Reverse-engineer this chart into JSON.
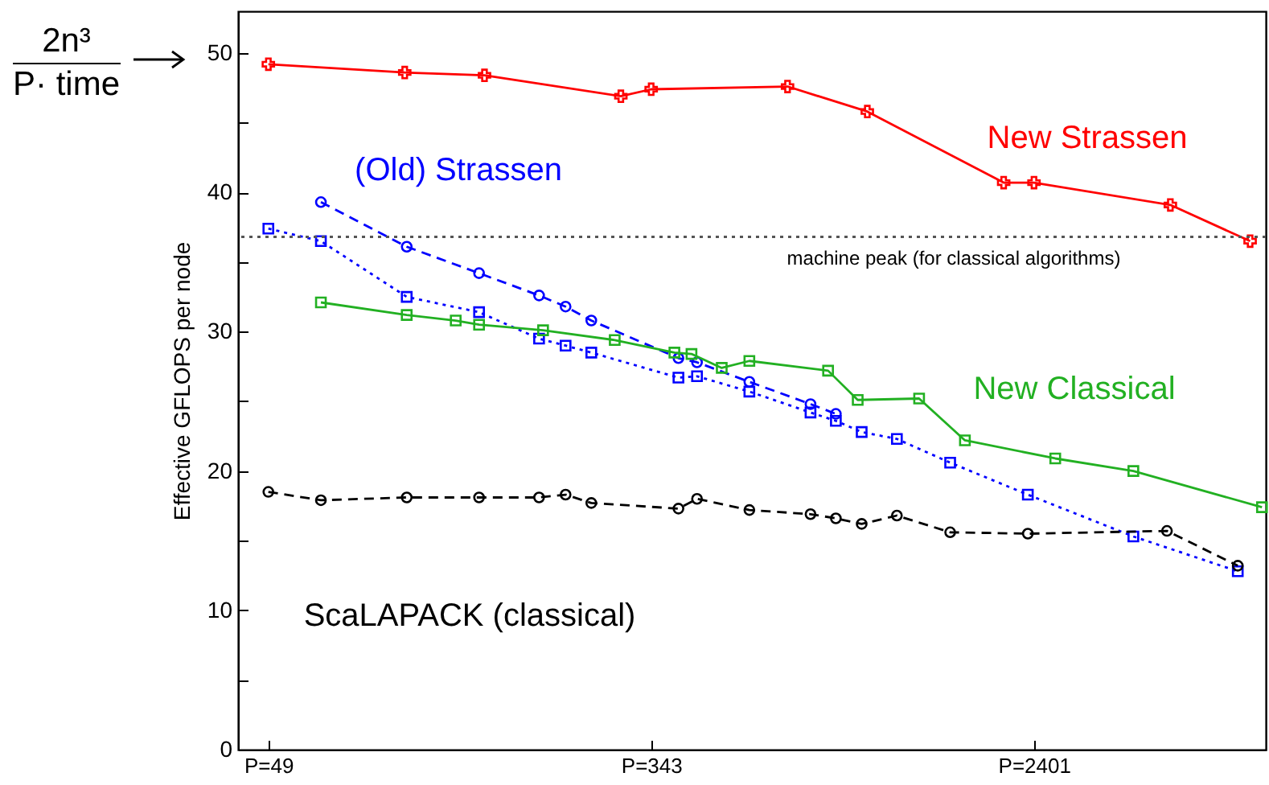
{
  "chart_data": {
    "type": "line",
    "ylabel": "Effective GFLOPS per node",
    "annotations": [
      "2n³",
      "P· time"
    ],
    "log": "x",
    "xlim": [
      42,
      7800
    ],
    "xticks": [
      {
        "value": 49,
        "label": "P=49"
      },
      {
        "value": 343,
        "label": "P=343"
      },
      {
        "value": 2401,
        "label": "P=2401"
      }
    ],
    "ylim": [
      0,
      53
    ],
    "yticks": [
      0,
      {
        "value": 5,
        "label": null
      },
      10,
      {
        "value": 15,
        "label": null
      },
      20,
      {
        "value": 25,
        "label": null
      },
      30,
      {
        "value": 35,
        "label": null
      },
      40,
      {
        "value": 45,
        "label": null
      },
      50
    ],
    "ref_lines": [
      {
        "axis": "y",
        "value": 36.8,
        "label": "machine peak (for classical algorithms)",
        "color": "#555555",
        "line_style": "dotted"
      }
    ],
    "series": [
      {
        "name": "New Strassen",
        "color": "#ff0000",
        "marker": "cross",
        "line_style": "solid",
        "x": [
          49,
          98,
          147,
          294,
          343,
          686,
          1029,
          2058,
          2401,
          4802,
          7203
        ],
        "values": [
          49.2,
          48.6,
          48.4,
          46.9,
          47.4,
          47.6,
          45.8,
          40.7,
          40.7,
          39.1,
          36.5
        ]
      },
      {
        "name": "(Old) Strassen",
        "color": "#0000ff",
        "marker": "circle",
        "line_style": "dashed",
        "x": [
          64,
          99,
          143,
          194,
          222,
          253,
          394,
          433,
          565,
          771,
          877
        ],
        "values": [
          39.3,
          36.1,
          34.2,
          32.6,
          31.8,
          30.8,
          28.1,
          27.8,
          26.4,
          24.8,
          24.1
        ]
      },
      {
        "color": "#0000ff",
        "marker": "square",
        "line_style": "dotted",
        "x": [
          49,
          64,
          99,
          143,
          194,
          222,
          253,
          394,
          433,
          565,
          771,
          877,
          1000,
          1196,
          1568,
          2327,
          3979,
          6765
        ],
        "values": [
          37.4,
          36.5,
          32.5,
          31.4,
          29.5,
          29.0,
          28.5,
          26.7,
          26.8,
          25.7,
          24.2,
          23.6,
          22.8,
          22.3,
          20.6,
          18.3,
          15.3,
          12.8
        ]
      },
      {
        "name": "New Classical",
        "color": "#22b022",
        "marker": "square",
        "line_style": "solid",
        "x": [
          64,
          99,
          127,
          143,
          198,
          285,
          386,
          421,
          491,
          565,
          843,
          980,
          1339,
          1690,
          2675,
          3979,
          7650
        ],
        "values": [
          32.1,
          31.2,
          30.8,
          30.5,
          30.1,
          29.4,
          28.5,
          28.4,
          27.4,
          27.9,
          27.2,
          25.1,
          25.2,
          22.2,
          20.9,
          20.0,
          17.4
        ]
      },
      {
        "name": "ScaLAPACK (classical)",
        "color": "#000000",
        "marker": "circle",
        "line_style": "dashed",
        "x": [
          49,
          64,
          99,
          143,
          194,
          222,
          253,
          394,
          433,
          565,
          771,
          877,
          1000,
          1196,
          1568,
          2327,
          4720,
          6765
        ],
        "values": [
          18.5,
          17.9,
          18.1,
          18.1,
          18.1,
          18.3,
          17.7,
          17.3,
          18.0,
          17.2,
          16.9,
          16.6,
          16.2,
          16.8,
          15.6,
          15.5,
          15.7,
          13.2
        ]
      }
    ]
  }
}
